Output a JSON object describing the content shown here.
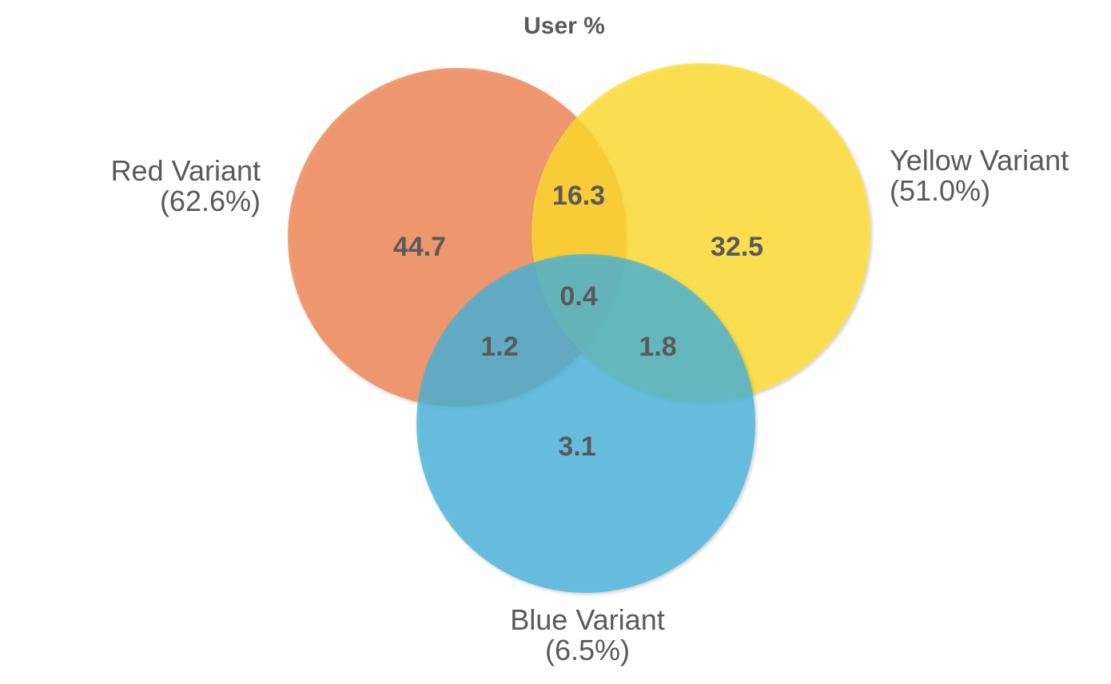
{
  "title": "User %",
  "colors": {
    "red": "#f0834f",
    "yellow": "#ffdd2c",
    "blue": "#45b2da",
    "text": "#595959"
  },
  "sets": [
    {
      "key": "red",
      "name": "Red Variant",
      "total": "(62.6%)"
    },
    {
      "key": "yellow",
      "name": "Yellow Variant",
      "total": "(51.0%)"
    },
    {
      "key": "blue",
      "name": "Blue Variant",
      "total": "(6.5%)"
    }
  ],
  "regions": [
    {
      "key": "red_only",
      "sets": [
        "red"
      ],
      "value": "44.7"
    },
    {
      "key": "yellow_only",
      "sets": [
        "yellow"
      ],
      "value": "32.5"
    },
    {
      "key": "blue_only",
      "sets": [
        "blue"
      ],
      "value": "3.1"
    },
    {
      "key": "red_yellow",
      "sets": [
        "red",
        "yellow"
      ],
      "value": "16.3"
    },
    {
      "key": "red_blue",
      "sets": [
        "red",
        "blue"
      ],
      "value": "1.2"
    },
    {
      "key": "yellow_blue",
      "sets": [
        "yellow",
        "blue"
      ],
      "value": "1.8"
    },
    {
      "key": "red_yellow_blue",
      "sets": [
        "red",
        "yellow",
        "blue"
      ],
      "value": "0.4"
    }
  ]
}
